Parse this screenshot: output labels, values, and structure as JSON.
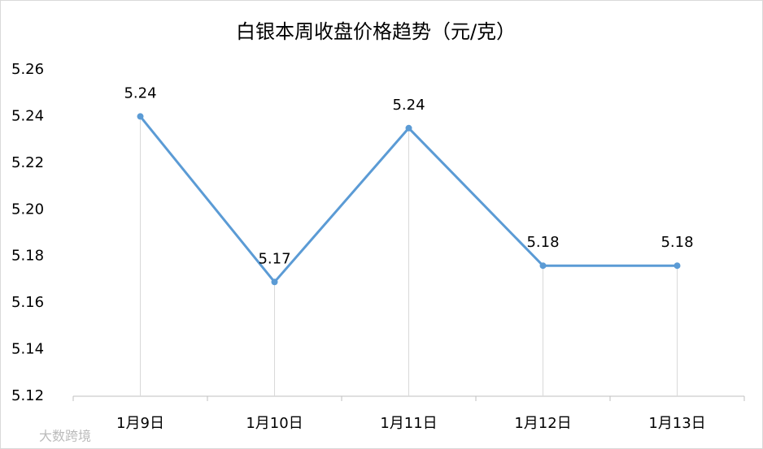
{
  "chart_data": {
    "type": "line",
    "title": "白银本周收盘价格趋势（元/克）",
    "categories": [
      "1月9日",
      "1月10日",
      "1月11日",
      "1月12日",
      "1月13日"
    ],
    "values": [
      5.24,
      5.169,
      5.235,
      5.176,
      5.176
    ],
    "value_labels": [
      "5.24",
      "5.17",
      "5.24",
      "5.18",
      "5.18"
    ],
    "color": "#5b9bd5",
    "ylim": [
      5.12,
      5.26
    ],
    "yticks": [
      5.12,
      5.14,
      5.16,
      5.18,
      {
        "value": 5.2,
        "label": "5.20"
      },
      5.22,
      5.24,
      5.26
    ],
    "drop_lines": true
  },
  "watermark": "大数跨境"
}
